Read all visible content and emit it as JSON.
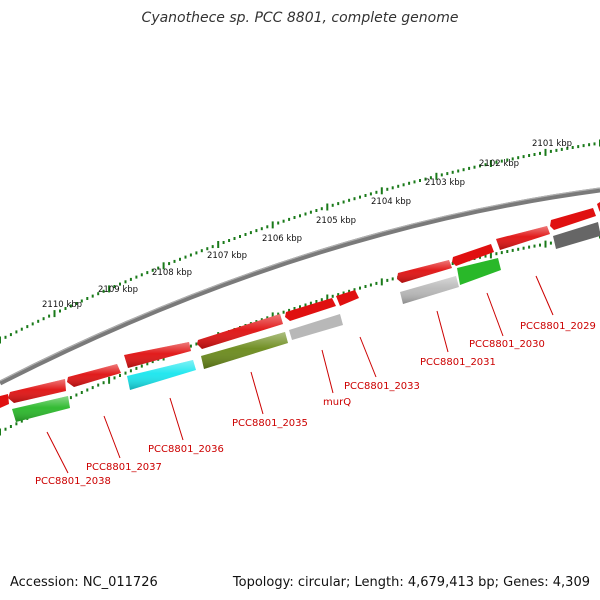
{
  "title": "Cyanothece sp. PCC 8801, complete genome",
  "footer": {
    "accession": "Accession: NC_011726",
    "summary": "Topology: circular; Length: 4,679,413 bp; Genes: 4,309"
  },
  "colors": {
    "backbone": "#7a7a7a",
    "tick": "#1a7a1a",
    "label": "#cc0000",
    "gene_red": "#e01010",
    "gene_green": "#29b829",
    "gene_cyan": "#18e6ee",
    "gene_olive": "#6a8a1a",
    "gene_lightgray": "#b8b8b8",
    "gene_darkgray": "#666666"
  },
  "scale_ticks": [
    {
      "label": "2101 kbp"
    },
    {
      "label": "2102 kbp"
    },
    {
      "label": "2103 kbp"
    },
    {
      "label": "2104 kbp"
    },
    {
      "label": "2105 kbp"
    },
    {
      "label": "2106 kbp"
    },
    {
      "label": "2107 kbp"
    },
    {
      "label": "2108 kbp"
    },
    {
      "label": "2109 kbp"
    },
    {
      "label": "2110 kbp"
    }
  ],
  "gene_labels": [
    {
      "text": "PCC8801_2029"
    },
    {
      "text": "PCC8801_2030"
    },
    {
      "text": "PCC8801_2031"
    },
    {
      "text": "PCC8801_2033"
    },
    {
      "text": "murQ"
    },
    {
      "text": "PCC8801_2035"
    },
    {
      "text": "PCC8801_2036"
    },
    {
      "text": "PCC8801_2037"
    },
    {
      "text": "PCC8801_2038"
    }
  ]
}
